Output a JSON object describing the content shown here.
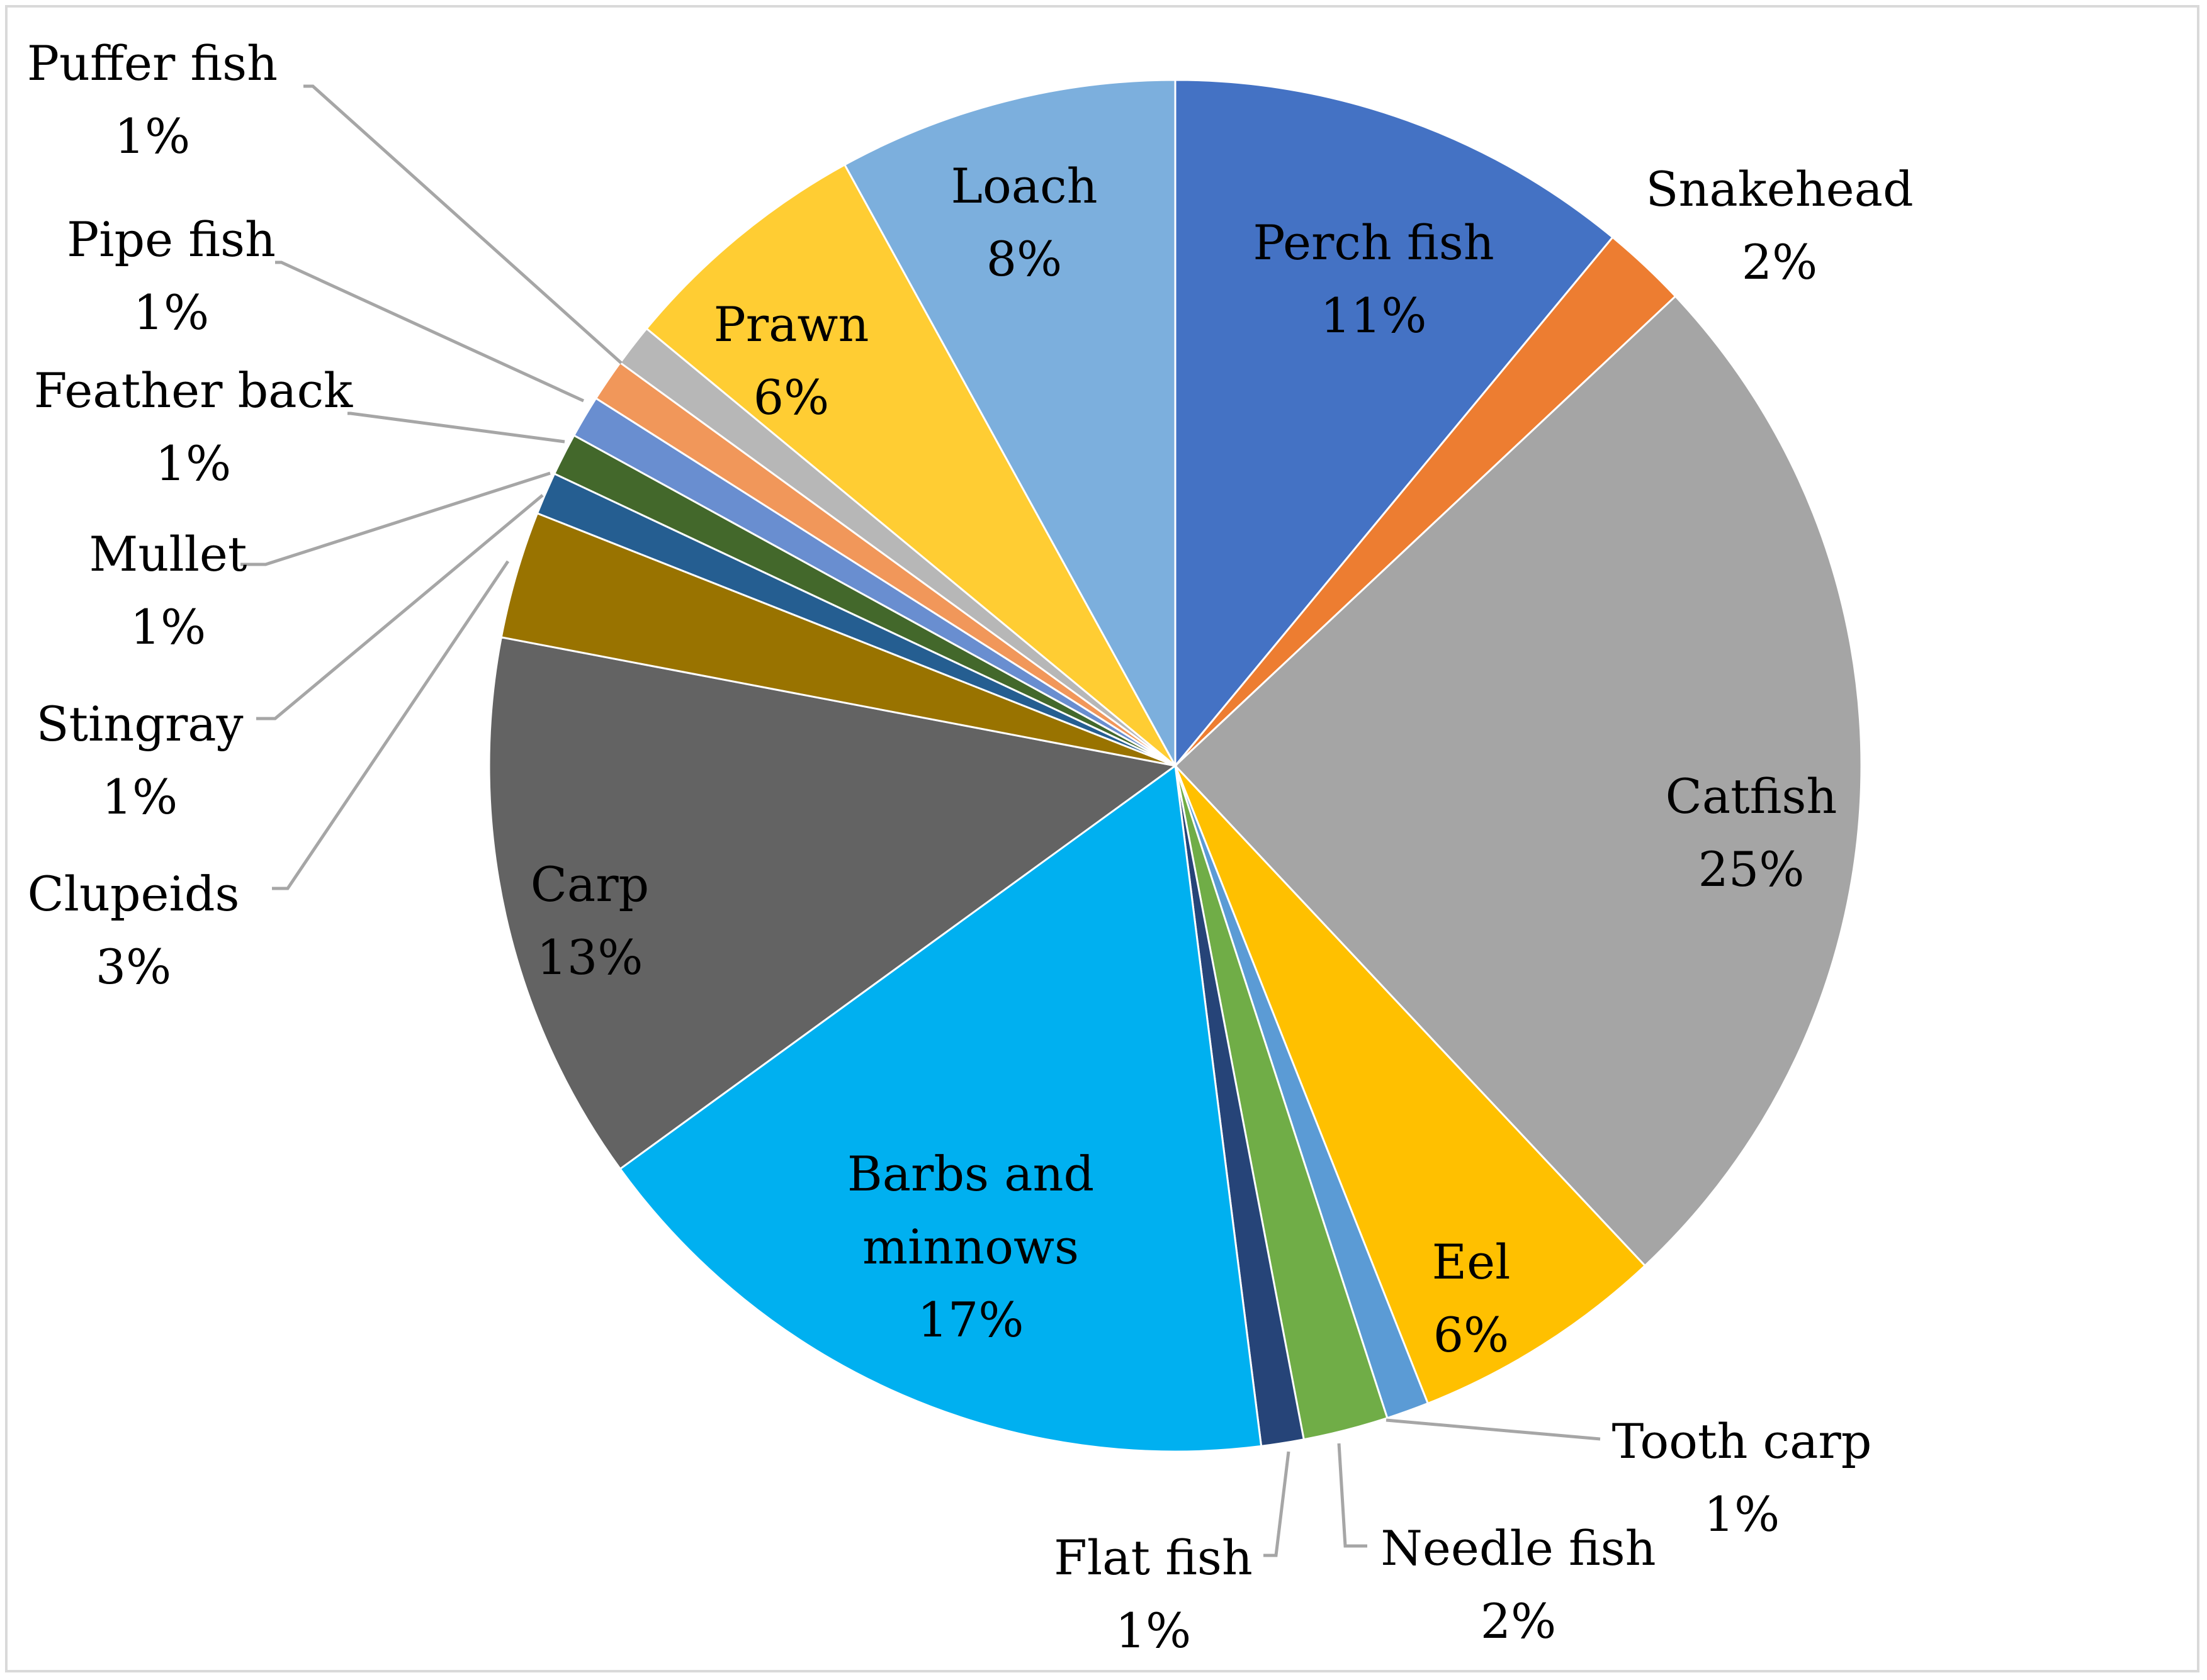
{
  "chart_data": {
    "type": "pie",
    "title": "",
    "start_angle_deg": 0,
    "direction": "clockwise",
    "slices": [
      {
        "name": "Perch fish",
        "value": 11,
        "label": "Perch fish",
        "pct": "11%",
        "color": "#4472C4"
      },
      {
        "name": "Snakehead",
        "value": 2,
        "label": "Snakehead",
        "pct": "2%",
        "color": "#ED7D31"
      },
      {
        "name": "Catfish",
        "value": 25,
        "label": "Catfish",
        "pct": "25%",
        "color": "#A5A5A5"
      },
      {
        "name": "Eel",
        "value": 6,
        "label": "Eel",
        "pct": "6%",
        "color": "#FFC000"
      },
      {
        "name": "Tooth carp",
        "value": 1,
        "label": "Tooth carp",
        "pct": "1%",
        "color": "#5B9BD5"
      },
      {
        "name": "Needle fish",
        "value": 2,
        "label": "Needle fish",
        "pct": "2%",
        "color": "#70AD47"
      },
      {
        "name": "Flat fish",
        "value": 1,
        "label": "Flat fish",
        "pct": "1%",
        "color": "#264478"
      },
      {
        "name": "Barbs and minnows",
        "value": 17,
        "label": "Barbs and minnows",
        "pct": "17%",
        "color": "#00B0F0"
      },
      {
        "name": "Carp",
        "value": 13,
        "label": "Carp",
        "pct": "13%",
        "color": "#636363"
      },
      {
        "name": "Clupeids",
        "value": 3,
        "label": "Clupeids",
        "pct": "3%",
        "color": "#997300"
      },
      {
        "name": "Stingray",
        "value": 1,
        "label": "Stingray",
        "pct": "1%",
        "color": "#255E91"
      },
      {
        "name": "Mullet",
        "value": 1,
        "label": "Mullet",
        "pct": "1%",
        "color": "#43682B"
      },
      {
        "name": "Feather back",
        "value": 1,
        "label": "Feather back",
        "pct": "1%",
        "color": "#698ED0"
      },
      {
        "name": "Pipe fish",
        "value": 1,
        "label": "Pipe fish",
        "pct": "1%",
        "color": "#F1975A"
      },
      {
        "name": "Puffer fish",
        "value": 1,
        "label": "Puffer fish",
        "pct": "1%",
        "color": "#B7B7B7"
      },
      {
        "name": "Prawn",
        "value": 6,
        "label": "Prawn",
        "pct": "6%",
        "color": "#FFCD33"
      },
      {
        "name": "Loach",
        "value": 8,
        "label": "Loach",
        "pct": "8%",
        "color": "#7CAFDD"
      }
    ]
  }
}
